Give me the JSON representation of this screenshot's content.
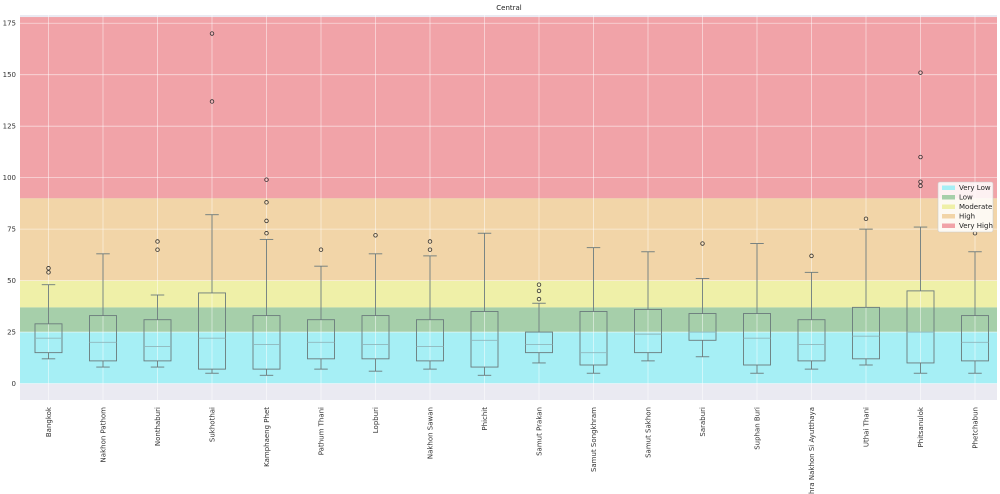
{
  "chart_data": {
    "type": "box",
    "title": "Central",
    "xlabel": "",
    "ylabel": "",
    "ylim": [
      -8,
      179
    ],
    "yticks": [
      0,
      25,
      50,
      75,
      100,
      125,
      150,
      175
    ],
    "grid": true,
    "legend_placement": "right",
    "bands": [
      {
        "name": "Very Low",
        "from": 0,
        "to": 25,
        "color": "#a6eff5"
      },
      {
        "name": "Low",
        "from": 25,
        "to": 37,
        "color": "#a6cfaa"
      },
      {
        "name": "Moderate",
        "from": 37,
        "to": 50,
        "color": "#eff0a8"
      },
      {
        "name": "High",
        "from": 50,
        "to": 90,
        "color": "#f2d5a8"
      },
      {
        "name": "Very High",
        "from": 90,
        "to": 178,
        "color": "#f1a3a8"
      }
    ],
    "categories": [
      "Bangkok",
      "Nakhon Pathom",
      "Nonthaburi",
      "Sukhothai",
      "Kamphaeng Phet",
      "Pathum Thani",
      "Lopburi",
      "Nakhon Sawan",
      "Phichit",
      "Samut Prakan",
      "Samut Songkhram",
      "Samut Sakhon",
      "Saraburi",
      "Suphan Buri",
      "Phra Nakhon Si Ayutthaya",
      "Uthai Thani",
      "Phitsanulok",
      "Phetchabun"
    ],
    "boxes": [
      {
        "whislo": 12,
        "q1": 15,
        "med": 22,
        "q3": 29,
        "whishi": 48,
        "fliers": [
          54,
          56
        ]
      },
      {
        "whislo": 8,
        "q1": 11,
        "med": 20,
        "q3": 33,
        "whishi": 63,
        "fliers": []
      },
      {
        "whislo": 8,
        "q1": 11,
        "med": 18,
        "q3": 31,
        "whishi": 43,
        "fliers": [
          65,
          69
        ]
      },
      {
        "whislo": 5,
        "q1": 7,
        "med": 22,
        "q3": 44,
        "whishi": 82,
        "fliers": [
          137,
          170
        ]
      },
      {
        "whislo": 4,
        "q1": 7,
        "med": 19,
        "q3": 33,
        "whishi": 70,
        "fliers": [
          73,
          79,
          88,
          99
        ]
      },
      {
        "whislo": 7,
        "q1": 12,
        "med": 20,
        "q3": 31,
        "whishi": 57,
        "fliers": [
          65
        ]
      },
      {
        "whislo": 6,
        "q1": 12,
        "med": 19,
        "q3": 33,
        "whishi": 63,
        "fliers": [
          72
        ]
      },
      {
        "whislo": 7,
        "q1": 11,
        "med": 18,
        "q3": 31,
        "whishi": 62,
        "fliers": [
          65,
          69
        ]
      },
      {
        "whislo": 4,
        "q1": 8,
        "med": 21,
        "q3": 35,
        "whishi": 73,
        "fliers": []
      },
      {
        "whislo": 10,
        "q1": 15,
        "med": 19,
        "q3": 25,
        "whishi": 39,
        "fliers": [
          41,
          45,
          48
        ]
      },
      {
        "whislo": 5,
        "q1": 9,
        "med": 15,
        "q3": 35,
        "whishi": 66,
        "fliers": []
      },
      {
        "whislo": 11,
        "q1": 15,
        "med": 24,
        "q3": 36,
        "whishi": 64,
        "fliers": []
      },
      {
        "whislo": 13,
        "q1": 21,
        "med": 25,
        "q3": 34,
        "whishi": 51,
        "fliers": [
          68
        ]
      },
      {
        "whislo": 5,
        "q1": 9,
        "med": 22,
        "q3": 34,
        "whishi": 68,
        "fliers": []
      },
      {
        "whislo": 7,
        "q1": 11,
        "med": 19,
        "q3": 31,
        "whishi": 54,
        "fliers": [
          62
        ]
      },
      {
        "whislo": 9,
        "q1": 12,
        "med": 23,
        "q3": 37,
        "whishi": 75,
        "fliers": [
          80
        ]
      },
      {
        "whislo": 5,
        "q1": 10,
        "med": 25,
        "q3": 45,
        "whishi": 76,
        "fliers": [
          96,
          98,
          110,
          151
        ]
      },
      {
        "whislo": 5,
        "q1": 11,
        "med": 20,
        "q3": 33,
        "whishi": 64,
        "fliers": [
          73
        ]
      }
    ]
  }
}
